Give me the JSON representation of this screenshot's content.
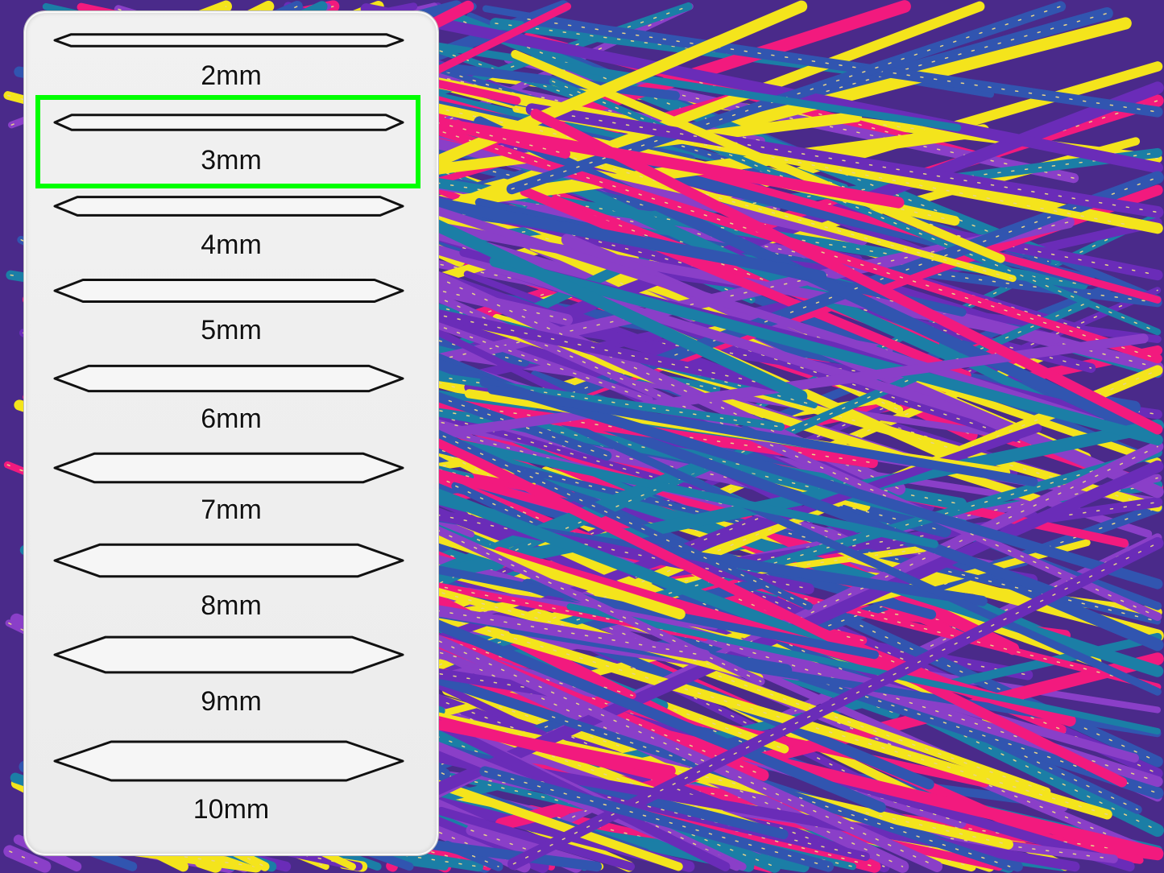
{
  "background": {
    "subject": "multicolor metallic yarn",
    "colors": [
      "#f4e41c",
      "#f21a7e",
      "#6a2cb8",
      "#1b7ea6",
      "#3155b0",
      "#8a3fc8"
    ]
  },
  "gauge_panel": {
    "needles": [
      {
        "label": "2mm",
        "size_mm": 2
      },
      {
        "label": "3mm",
        "size_mm": 3
      },
      {
        "label": "4mm",
        "size_mm": 4
      },
      {
        "label": "5mm",
        "size_mm": 5
      },
      {
        "label": "6mm",
        "size_mm": 6
      },
      {
        "label": "7mm",
        "size_mm": 7
      },
      {
        "label": "8mm",
        "size_mm": 8
      },
      {
        "label": "9mm",
        "size_mm": 9
      },
      {
        "label": "10mm",
        "size_mm": 10
      }
    ],
    "selected_index": 1,
    "highlight_color": "#00ff00"
  }
}
